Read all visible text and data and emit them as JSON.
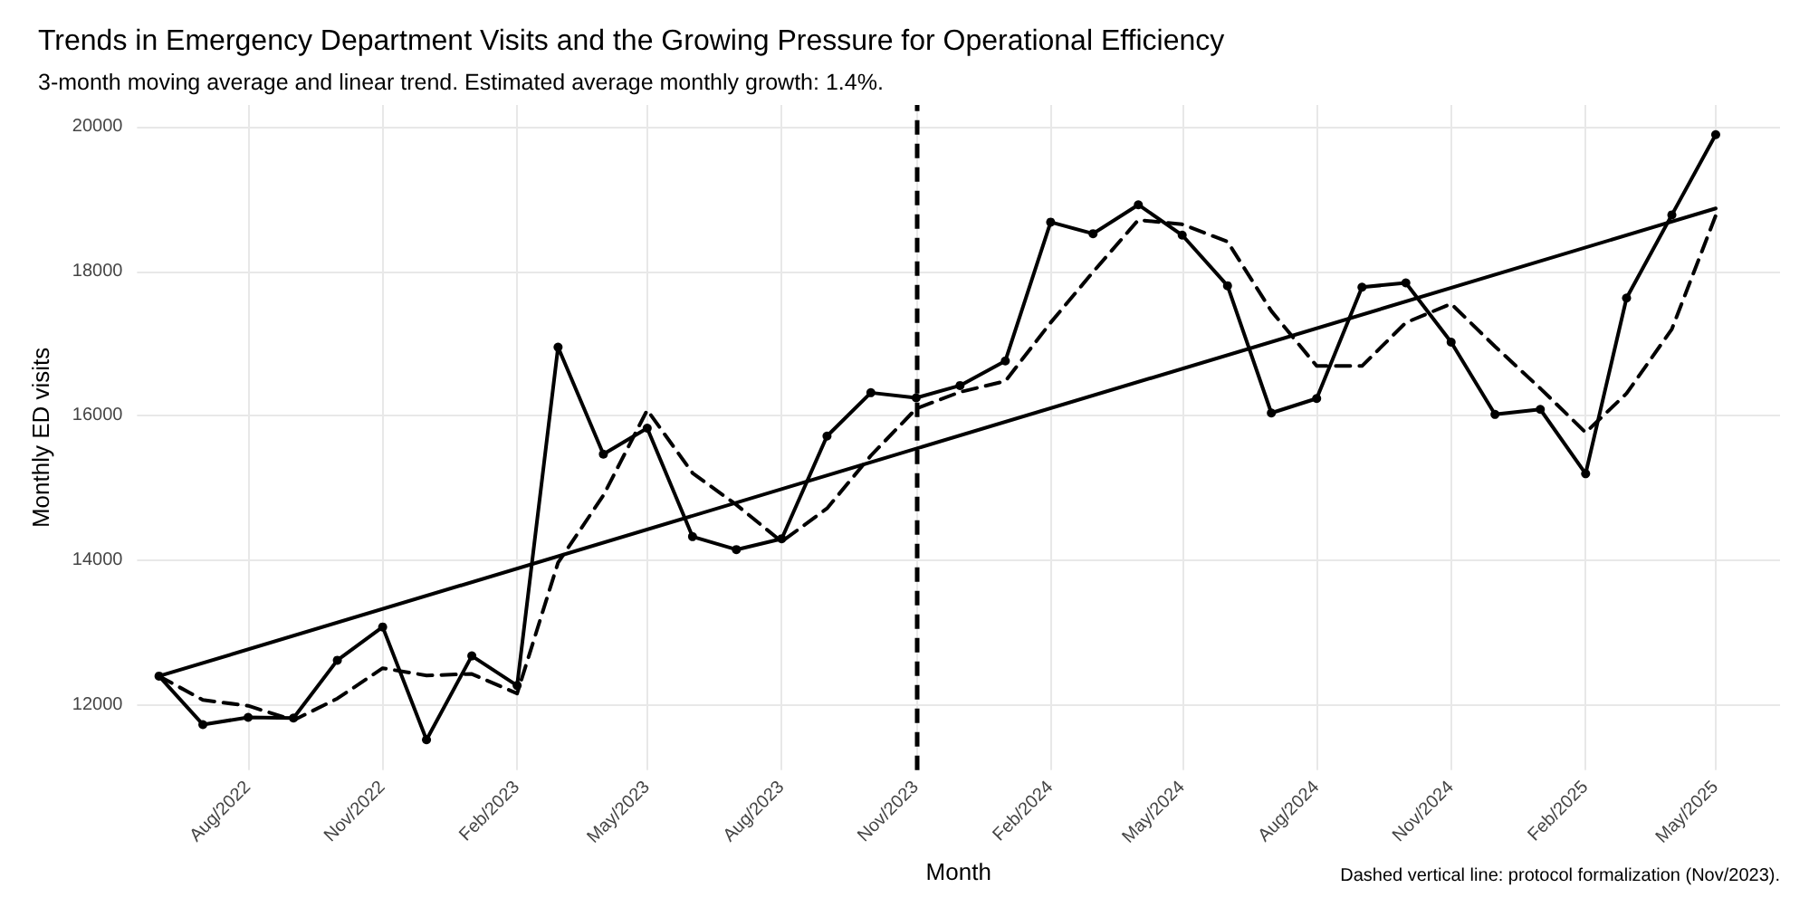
{
  "chart_data": {
    "type": "line",
    "title": "Trends in Emergency Department Visits and the Growing Pressure for Operational Efficiency",
    "subtitle": "3-month moving average and linear trend. Estimated average monthly growth: 1.4%.",
    "xlabel": "Month",
    "ylabel": "Monthly ED visits",
    "x": [
      "2022-06",
      "2022-07",
      "2022-08",
      "2022-09",
      "2022-10",
      "2022-11",
      "2022-12",
      "2023-01",
      "2023-02",
      "2023-03",
      "2023-04",
      "2023-05",
      "2023-06",
      "2023-07",
      "2023-08",
      "2023-09",
      "2023-10",
      "2023-11",
      "2023-12",
      "2024-01",
      "2024-02",
      "2024-03",
      "2024-04",
      "2024-05",
      "2024-06",
      "2024-07",
      "2024-08",
      "2024-09",
      "2024-10",
      "2024-11",
      "2024-12",
      "2025-01",
      "2025-02",
      "2025-03",
      "2025-04",
      "2025-05"
    ],
    "series": [
      {
        "color": "#000000",
        "marker": "circle",
        "line_style": "solid",
        "values": [
          12400,
          11730,
          11830,
          11820,
          12620,
          13080,
          11520,
          12680,
          12270,
          16950,
          15470,
          15830,
          14330,
          14150,
          14300,
          15720,
          16320,
          16250,
          16420,
          16760,
          18680,
          18520,
          18920,
          18500,
          17800,
          16040,
          16240,
          17780,
          17840,
          17020,
          16020,
          16090,
          15200,
          17630,
          18780,
          19890
        ]
      },
      {
        "color": "#000000",
        "marker": "none",
        "line_style": "dashed",
        "values": [
          12400,
          12070,
          11990,
          11790,
          12090,
          12510,
          12410,
          12430,
          12160,
          13970,
          14900,
          16080,
          15210,
          14770,
          14260,
          14720,
          15450,
          16100,
          16330,
          16480,
          17290,
          17990,
          18710,
          18650,
          18410,
          17450,
          16690,
          16690,
          17290,
          17550,
          16960,
          16380,
          15770,
          16310,
          17200,
          18770
        ]
      },
      {
        "type": "line",
        "color": "#000000",
        "marker": "none",
        "line_style": "solid",
        "x": [
          "2022-06",
          "2025-05"
        ],
        "values": [
          12400,
          18870
        ]
      }
    ],
    "xlim": [
      "2022-05-17",
      "2025-06-14"
    ],
    "xticks": [
      {
        "value": "2022-08",
        "label": "Aug/2022"
      },
      {
        "value": "2022-11",
        "label": "Nov/2022"
      },
      {
        "value": "2023-02",
        "label": "Feb/2023"
      },
      {
        "value": "2023-05",
        "label": "May/2023"
      },
      {
        "value": "2023-08",
        "label": "Aug/2023"
      },
      {
        "value": "2023-11",
        "label": "Nov/2023"
      },
      {
        "value": "2024-02",
        "label": "Feb/2024"
      },
      {
        "value": "2024-05",
        "label": "May/2024"
      },
      {
        "value": "2024-08",
        "label": "Aug/2024"
      },
      {
        "value": "2024-11",
        "label": "Nov/2024"
      },
      {
        "value": "2025-02",
        "label": "Feb/2025"
      },
      {
        "value": "2025-05",
        "label": "May/2025"
      }
    ],
    "ylim": [
      11100,
      20300
    ],
    "yticks": [
      12000,
      14000,
      16000,
      18000,
      20000
    ],
    "grid": true,
    "ref_lines": [
      {
        "axis": "x",
        "value": "2023-11",
        "color": "#000000",
        "line_style": "dashed"
      }
    ],
    "annotations": [
      "Dashed vertical line: protocol formalization (Nov/2023)."
    ]
  }
}
